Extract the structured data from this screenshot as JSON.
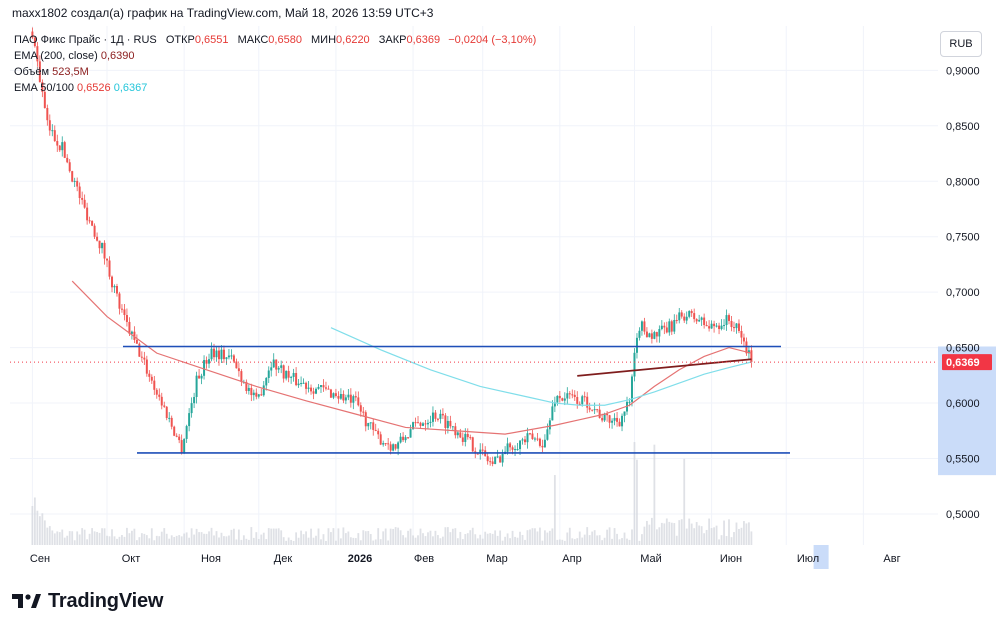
{
  "header": {
    "attribution": "maxx1802 создал(а) график на TradingView.com, Май 18, 2026 13:59 UTC+3"
  },
  "legend": {
    "symbol": "ПАО Фикс Прайс · 1Д · RUS",
    "open_label": "ОТКР",
    "open_value": "0,6551",
    "high_label": "МАКС",
    "high_value": "0,6580",
    "low_label": "МИН",
    "low_value": "0,6220",
    "close_label": "ЗАКР",
    "close_value": "0,6369",
    "change": "−0,0204 (−3,10%)",
    "ema200_label": "EMA (200, close)",
    "ema200_value": "0,6390",
    "volume_label": "Объём",
    "volume_value": "523,5M",
    "ema_pair_label": "EMA 50/100",
    "ema50_value": "0,6526",
    "ema100_value": "0,6367"
  },
  "currency_button": "RUB",
  "brand": {
    "name": "TradingView"
  },
  "colors": {
    "up": "#26a69a",
    "down": "#ef5350",
    "ema50": "#e57373",
    "ema100": "#80deea",
    "hline": "#1e4fb8",
    "trendline": "#7f1d1d",
    "price_label": "#f23645",
    "axis_highlight": "#bdd3f7",
    "volume": "#d1d4dc"
  },
  "chart_data": {
    "type": "candlestick",
    "timeframe": "1Д",
    "y_axis": {
      "ticks": [
        "0,9000",
        "0,8500",
        "0,8000",
        "0,7500",
        "0,7000",
        "0,6500",
        "0,6000",
        "0,5500",
        "0,5000"
      ],
      "range": [
        0.472,
        0.94
      ],
      "current_price_label": "0,6369",
      "current_price": 0.6369
    },
    "x_axis": {
      "months": [
        "Сен",
        "Окт",
        "Ноя",
        "Дек",
        "2026",
        "Фев",
        "Мар",
        "Апр",
        "Май",
        "Июн",
        "Июл",
        "Авг"
      ],
      "range_days": [
        -9,
        364
      ]
    },
    "horizontal_lines": [
      0.651,
      0.555
    ],
    "trend_line": [
      [
        219,
        0.6245
      ],
      [
        289,
        0.6395
      ]
    ],
    "price_anchors": [
      [
        0,
        0.935
      ],
      [
        6,
        0.85
      ],
      [
        12,
        0.83
      ],
      [
        20,
        0.78
      ],
      [
        28,
        0.74
      ],
      [
        36,
        0.68
      ],
      [
        44,
        0.64
      ],
      [
        52,
        0.6
      ],
      [
        60,
        0.56
      ],
      [
        66,
        0.62
      ],
      [
        72,
        0.648
      ],
      [
        80,
        0.64
      ],
      [
        90,
        0.6
      ],
      [
        96,
        0.638
      ],
      [
        104,
        0.622
      ],
      [
        112,
        0.615
      ],
      [
        122,
        0.608
      ],
      [
        130,
        0.6
      ],
      [
        138,
        0.57
      ],
      [
        146,
        0.56
      ],
      [
        154,
        0.58
      ],
      [
        162,
        0.59
      ],
      [
        170,
        0.577
      ],
      [
        178,
        0.56
      ],
      [
        185,
        0.545
      ],
      [
        192,
        0.562
      ],
      [
        200,
        0.568
      ],
      [
        206,
        0.565
      ],
      [
        210,
        0.605
      ],
      [
        216,
        0.605
      ],
      [
        224,
        0.6
      ],
      [
        230,
        0.585
      ],
      [
        236,
        0.585
      ],
      [
        240,
        0.6
      ],
      [
        242,
        0.64
      ],
      [
        244,
        0.67
      ],
      [
        250,
        0.66
      ],
      [
        256,
        0.668
      ],
      [
        262,
        0.68
      ],
      [
        268,
        0.675
      ],
      [
        272,
        0.668
      ],
      [
        280,
        0.675
      ],
      [
        285,
        0.66
      ],
      [
        289,
        0.637
      ]
    ],
    "ema50": [
      [
        16,
        0.71
      ],
      [
        30,
        0.678
      ],
      [
        50,
        0.645
      ],
      [
        70,
        0.63
      ],
      [
        90,
        0.615
      ],
      [
        110,
        0.602
      ],
      [
        130,
        0.59
      ],
      [
        150,
        0.578
      ],
      [
        170,
        0.575
      ],
      [
        190,
        0.572
      ],
      [
        210,
        0.58
      ],
      [
        220,
        0.585
      ],
      [
        230,
        0.59
      ],
      [
        240,
        0.598
      ],
      [
        250,
        0.615
      ],
      [
        260,
        0.63
      ],
      [
        270,
        0.642
      ],
      [
        280,
        0.65
      ],
      [
        289,
        0.645
      ]
    ],
    "ema100": [
      [
        120,
        0.668
      ],
      [
        140,
        0.648
      ],
      [
        160,
        0.63
      ],
      [
        180,
        0.615
      ],
      [
        200,
        0.605
      ],
      [
        210,
        0.6
      ],
      [
        220,
        0.598
      ],
      [
        230,
        0.598
      ],
      [
        240,
        0.603
      ],
      [
        250,
        0.61
      ],
      [
        260,
        0.618
      ],
      [
        270,
        0.626
      ],
      [
        280,
        0.632
      ],
      [
        289,
        0.637
      ]
    ]
  }
}
